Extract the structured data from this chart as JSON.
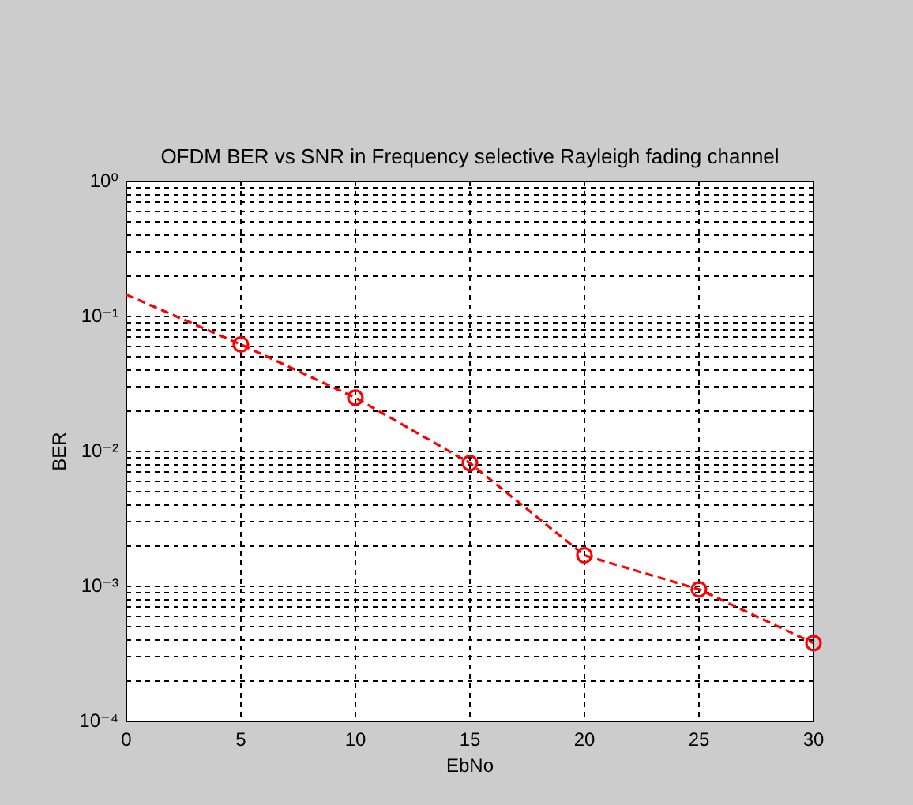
{
  "chart_data": {
    "type": "line",
    "title": "OFDM BER vs SNR in Frequency selective Rayleigh fading channel",
    "xlabel": "EbNo",
    "ylabel": "BER",
    "xlim": [
      0,
      30
    ],
    "xticks": [
      0,
      5,
      10,
      15,
      20,
      25,
      30
    ],
    "ylim": [
      0.0001,
      1
    ],
    "yticks": [
      {
        "value": 0.0001,
        "label": "10⁻⁴"
      },
      {
        "value": 0.0002,
        "label": null
      },
      {
        "value": 0.0003,
        "label": null
      },
      {
        "value": 0.0004,
        "label": null
      },
      {
        "value": 0.0005,
        "label": null
      },
      {
        "value": 0.0006,
        "label": null
      },
      {
        "value": 0.0007,
        "label": null
      },
      {
        "value": 0.0008,
        "label": null
      },
      {
        "value": 0.0009,
        "label": null
      },
      {
        "value": 0.001,
        "label": "10⁻³"
      },
      {
        "value": 0.002,
        "label": null
      },
      {
        "value": 0.003,
        "label": null
      },
      {
        "value": 0.004,
        "label": null
      },
      {
        "value": 0.005,
        "label": null
      },
      {
        "value": 0.006,
        "label": null
      },
      {
        "value": 0.007,
        "label": null
      },
      {
        "value": 0.008,
        "label": null
      },
      {
        "value": 0.009,
        "label": null
      },
      {
        "value": 0.01,
        "label": "10⁻²"
      },
      {
        "value": 0.02,
        "label": null
      },
      {
        "value": 0.03,
        "label": null
      },
      {
        "value": 0.04,
        "label": null
      },
      {
        "value": 0.05,
        "label": null
      },
      {
        "value": 0.06,
        "label": null
      },
      {
        "value": 0.07,
        "label": null
      },
      {
        "value": 0.08,
        "label": null
      },
      {
        "value": 0.09,
        "label": null
      },
      {
        "value": 0.1,
        "label": "10⁻¹"
      },
      {
        "value": 0.2,
        "label": null
      },
      {
        "value": 0.3,
        "label": null
      },
      {
        "value": 0.4,
        "label": null
      },
      {
        "value": 0.5,
        "label": null
      },
      {
        "value": 0.6,
        "label": null
      },
      {
        "value": 0.7,
        "label": null
      },
      {
        "value": 0.8,
        "label": null
      },
      {
        "value": 0.9,
        "label": null
      },
      {
        "value": 1,
        "label": "10⁰"
      }
    ],
    "log": "y",
    "grid": true,
    "series": [
      {
        "color": "#ff0000",
        "line_style": "dashed",
        "marker": "none",
        "x": [
          0,
          5,
          10,
          15,
          20,
          25,
          30
        ],
        "values": [
          0.145,
          0.062,
          0.025,
          0.0082,
          0.0017,
          0.00095,
          0.00038
        ]
      },
      {
        "type": "scatter",
        "color": "#ff0000",
        "marker": "circle",
        "x": [
          5,
          10,
          15,
          20,
          25,
          30
        ],
        "values": [
          0.062,
          0.025,
          0.0082,
          0.0017,
          0.00095,
          0.00038
        ]
      }
    ]
  }
}
